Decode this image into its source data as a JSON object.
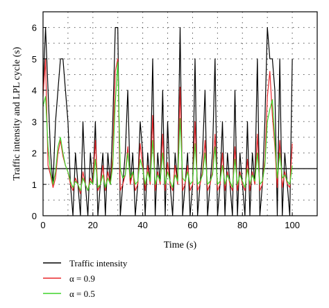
{
  "chart_data": {
    "type": "line",
    "xlabel": "Time (s)",
    "ylabel": "Traffic intensity and LPL cycle (s)",
    "xlim": [
      0,
      110
    ],
    "ylim": [
      0,
      6.5
    ],
    "xticks": [
      0,
      20,
      40,
      60,
      80,
      100
    ],
    "yticks": [
      0,
      1,
      2,
      3,
      4,
      5,
      6
    ],
    "grid": "dotted",
    "legend_position": "bottom-left, below plot",
    "hline": 1.5,
    "series": [
      {
        "name": "Traffic intensity",
        "color": "#000000",
        "x": [
          0,
          1,
          2,
          3,
          4,
          5,
          6,
          7,
          8,
          9,
          10,
          11,
          12,
          13,
          14,
          15,
          16,
          17,
          18,
          19,
          20,
          21,
          22,
          23,
          24,
          25,
          26,
          27,
          28,
          29,
          30,
          31,
          32,
          33,
          34,
          35,
          36,
          37,
          38,
          39,
          40,
          41,
          42,
          43,
          44,
          45,
          46,
          47,
          48,
          49,
          50,
          51,
          52,
          53,
          54,
          55,
          56,
          57,
          58,
          59,
          60,
          61,
          62,
          63,
          64,
          65,
          66,
          67,
          68,
          69,
          70,
          71,
          72,
          73,
          74,
          75,
          76,
          77,
          78,
          79,
          80,
          81,
          82,
          83,
          84,
          85,
          86,
          87,
          88,
          89,
          90,
          91,
          92,
          93,
          94,
          95,
          96,
          97,
          98,
          99,
          100
        ],
        "values": [
          4,
          6,
          4,
          2,
          1,
          3,
          4,
          5,
          5,
          4,
          3,
          1,
          0,
          2,
          1,
          0,
          3,
          1,
          0,
          2,
          1,
          3,
          0,
          1,
          2,
          0,
          2,
          1,
          3,
          6,
          6,
          0,
          1,
          2,
          4,
          1,
          2,
          0,
          1,
          3,
          2,
          0,
          2,
          1,
          5,
          0,
          2,
          1,
          4,
          0,
          3,
          1,
          0,
          2,
          1,
          6,
          0,
          1,
          2,
          0,
          1,
          5,
          0,
          1,
          2,
          4,
          0,
          1,
          2,
          5,
          0,
          1,
          3,
          0,
          2,
          1,
          0,
          4,
          0,
          2,
          1,
          0,
          3,
          0,
          2,
          1,
          5,
          0,
          1,
          3,
          6,
          5,
          5,
          4,
          0,
          5,
          0,
          2,
          1,
          0,
          5
        ]
      },
      {
        "name": "α = 0.9",
        "color": "#e8262a",
        "x": [
          0,
          1,
          2,
          3,
          4,
          5,
          6,
          7,
          8,
          9,
          10,
          11,
          12,
          13,
          14,
          15,
          16,
          17,
          18,
          19,
          20,
          21,
          22,
          23,
          24,
          25,
          26,
          27,
          28,
          29,
          30,
          31,
          32,
          33,
          34,
          35,
          36,
          37,
          38,
          39,
          40,
          41,
          42,
          43,
          44,
          45,
          46,
          47,
          48,
          49,
          50,
          51,
          52,
          53,
          54,
          55,
          56,
          57,
          58,
          59,
          60,
          61,
          62,
          63,
          64,
          65,
          66,
          67,
          68,
          69,
          70,
          71,
          72,
          73,
          74,
          75,
          76,
          77,
          78,
          79,
          80,
          81,
          82,
          83,
          84,
          85,
          86,
          87,
          88,
          89,
          90,
          91,
          92,
          93,
          94,
          95,
          96,
          97,
          98,
          99,
          100
        ],
        "values": [
          3.8,
          5.0,
          1.6,
          1.3,
          0.9,
          1.2,
          2.0,
          2.4,
          1.9,
          1.6,
          1.4,
          1.0,
          0.8,
          1.2,
          1.0,
          0.7,
          1.4,
          1.0,
          0.8,
          1.2,
          1.0,
          2.4,
          0.8,
          1.0,
          1.6,
          0.8,
          1.4,
          1.0,
          1.9,
          4.6,
          5.0,
          0.8,
          1.0,
          1.3,
          2.2,
          1.0,
          1.4,
          0.8,
          1.0,
          2.3,
          1.6,
          0.8,
          1.6,
          1.0,
          3.2,
          0.8,
          1.4,
          1.0,
          2.6,
          0.8,
          1.7,
          1.0,
          0.8,
          1.6,
          1.0,
          4.1,
          0.8,
          1.0,
          1.6,
          0.8,
          1.0,
          3.0,
          0.8,
          1.0,
          1.4,
          2.4,
          0.8,
          1.0,
          1.4,
          2.6,
          0.8,
          1.0,
          2.0,
          0.8,
          1.4,
          1.0,
          0.8,
          2.2,
          0.8,
          1.4,
          1.0,
          0.8,
          1.8,
          0.8,
          1.4,
          1.0,
          2.6,
          0.8,
          1.0,
          1.8,
          3.8,
          4.6,
          3.2,
          2.2,
          0.9,
          2.4,
          0.9,
          1.4,
          1.0,
          0.9,
          2.3
        ]
      },
      {
        "name": "α = 0.5",
        "color": "#3ed42a",
        "x": [
          0,
          1,
          2,
          3,
          4,
          5,
          6,
          7,
          8,
          9,
          10,
          11,
          12,
          13,
          14,
          15,
          16,
          17,
          18,
          19,
          20,
          21,
          22,
          23,
          24,
          25,
          26,
          27,
          28,
          29,
          30,
          31,
          32,
          33,
          34,
          35,
          36,
          37,
          38,
          39,
          40,
          41,
          42,
          43,
          44,
          45,
          46,
          47,
          48,
          49,
          50,
          51,
          52,
          53,
          54,
          55,
          56,
          57,
          58,
          59,
          60,
          61,
          62,
          63,
          64,
          65,
          66,
          67,
          68,
          69,
          70,
          71,
          72,
          73,
          74,
          75,
          76,
          77,
          78,
          79,
          80,
          81,
          82,
          83,
          84,
          85,
          86,
          87,
          88,
          89,
          90,
          91,
          92,
          93,
          94,
          95,
          96,
          97,
          98,
          99,
          100
        ],
        "values": [
          3.5,
          3.8,
          2.2,
          1.4,
          1.0,
          1.4,
          2.2,
          2.5,
          2.0,
          1.6,
          1.4,
          1.1,
          0.9,
          1.1,
          1.0,
          0.8,
          1.2,
          1.0,
          0.8,
          1.1,
          1.0,
          1.8,
          0.9,
          1.0,
          1.3,
          0.9,
          1.2,
          1.0,
          1.6,
          3.6,
          4.9,
          1.5,
          1.2,
          1.3,
          2.0,
          1.2,
          1.4,
          1.0,
          1.1,
          1.8,
          1.5,
          1.0,
          1.4,
          1.1,
          2.4,
          1.0,
          1.3,
          1.1,
          2.0,
          1.0,
          1.4,
          1.1,
          0.9,
          1.3,
          1.1,
          3.1,
          1.2,
          1.1,
          1.4,
          1.0,
          1.1,
          2.3,
          1.0,
          1.1,
          1.3,
          2.0,
          1.0,
          1.1,
          1.3,
          2.2,
          1.0,
          1.1,
          1.6,
          1.0,
          1.3,
          1.1,
          0.9,
          1.8,
          1.0,
          1.3,
          1.1,
          0.9,
          1.5,
          1.0,
          1.3,
          1.1,
          2.0,
          1.0,
          1.1,
          1.6,
          3.0,
          3.4,
          3.7,
          2.4,
          1.2,
          2.0,
          1.2,
          1.3,
          1.1,
          1.0,
          1.6
        ]
      }
    ]
  }
}
